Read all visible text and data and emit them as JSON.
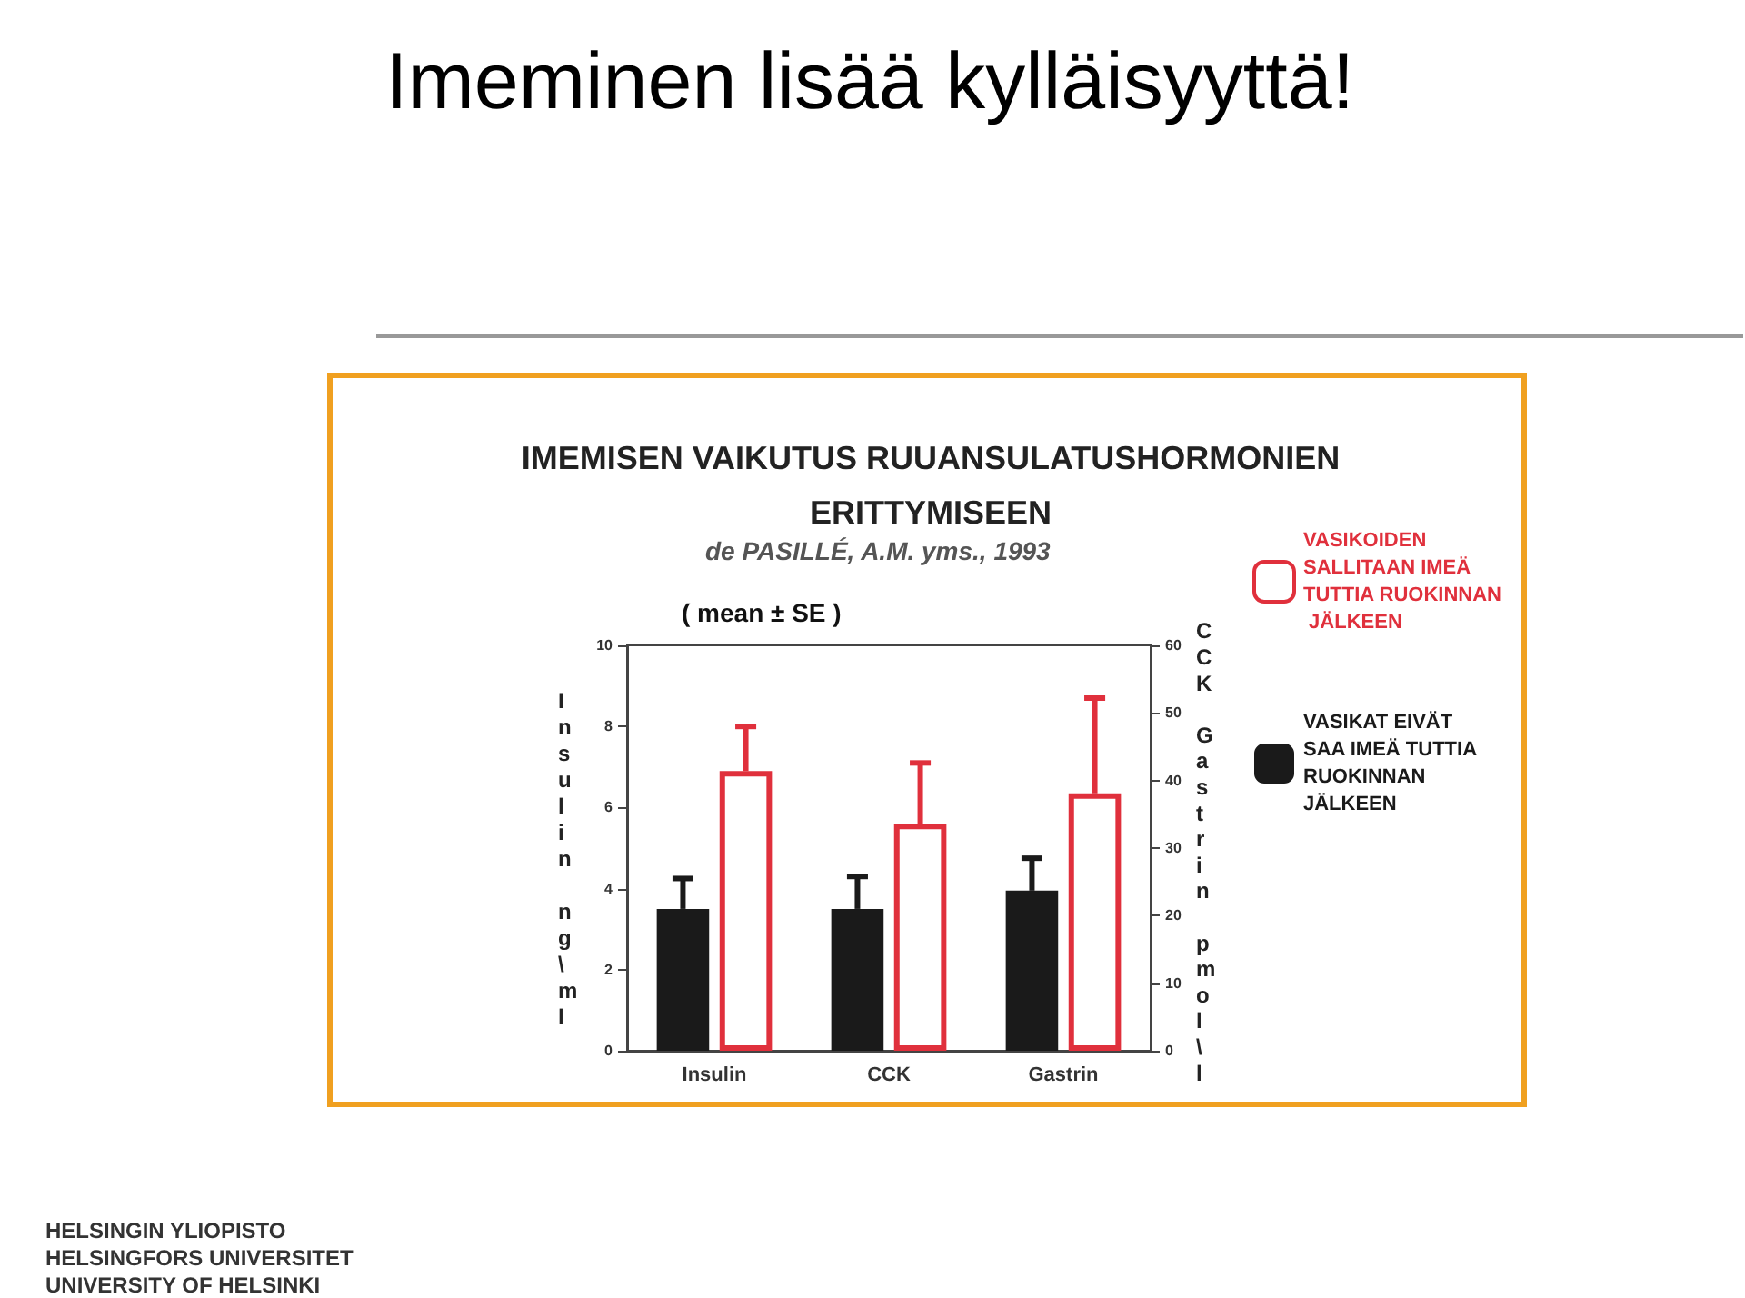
{
  "chart_data": {
    "type": "bar",
    "title": "Imeminen lisää kylläisyyttä!",
    "subtitle": "IMEMISEN VAIKUTUS RUUANSULATUSHORMONIEN\nERITTYMISEEN",
    "annotations": [
      "de PASILLÉ, A.M. yms., 1993",
      "( mean ± SE )",
      "HELSINGIN YLIOPISTO",
      "HELSINGFORS UNIVERSITET",
      "UNIVERSITY OF HELSINKI"
    ],
    "ylabel": "Insulin ng\\ml",
    "y2label": "CCK Gastrin pmol\\l",
    "categories": [
      "Insulin",
      "CCK",
      "Gastrin"
    ],
    "series": [
      {
        "name": "VASIKAT EIVÄT SAA IMEÄ TUTTIA RUOKINNAN JÄLKEEN",
        "color": "#1a1a1a",
        "values": [
          3.5,
          3.5,
          3.95
        ],
        "errors": [
          [
            3.5,
            4.25
          ],
          [
            3.5,
            4.3
          ],
          [
            3.95,
            4.75
          ]
        ]
      },
      {
        "name": "VASIKOIDEN SALLITAAN IMEÄ TUTTIA RUOKINNAN JÄLKEEN",
        "color": "#e0303c",
        "values": [
          6.9,
          5.6,
          6.35
        ],
        "errors": [
          [
            6.9,
            8.0
          ],
          [
            5.6,
            7.1
          ],
          [
            6.35,
            8.7
          ]
        ]
      }
    ],
    "ylim": [
      0,
      10
    ],
    "yticks": [
      0,
      2,
      4,
      6,
      8,
      10
    ],
    "y2lim": [
      0,
      60
    ],
    "y2ticks": [
      0,
      10,
      20,
      30,
      40,
      50,
      60
    ],
    "grid": false,
    "legend": "right"
  }
}
